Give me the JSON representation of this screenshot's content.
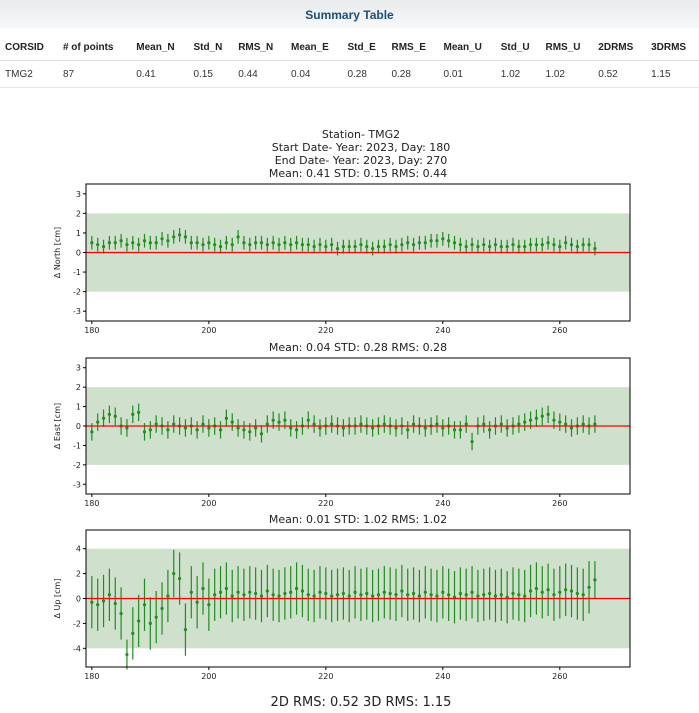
{
  "summary": {
    "title": "Summary Table",
    "columns": [
      "CORSID",
      "# of points",
      "Mean_N",
      "Std_N",
      "RMS_N",
      "Mean_E",
      "Std_E",
      "RMS_E",
      "Mean_U",
      "Std_U",
      "RMS_U",
      "2DRMS",
      "3DRMS"
    ],
    "rows": [
      [
        "TMG2",
        "87",
        "0.41",
        "0.15",
        "0.44",
        "0.04",
        "0.28",
        "0.28",
        "0.01",
        "1.02",
        "1.02",
        "0.52",
        "1.15"
      ]
    ]
  },
  "plot": {
    "title_lines": [
      "Station- TMG2",
      "Start Date- Year: 2023, Day: 180",
      "End Date- Year: 2023, Day: 270"
    ],
    "footer": "2D RMS: 0.52   3D RMS: 1.15",
    "colors": {
      "band": "#cfe0cc",
      "zero_line": "#ff0000",
      "marker": "#228b22"
    }
  },
  "chart_data": [
    {
      "type": "scatter",
      "stats_label": "Mean: 0.41   STD: 0.15   RMS: 0.44",
      "ylabel": "Δ North [cm]",
      "xlim": [
        179,
        272
      ],
      "ylim": [
        -3.5,
        3.5
      ],
      "xticks": [
        180,
        200,
        220,
        240,
        260
      ],
      "yticks": [
        -3,
        -2,
        -1,
        0,
        1,
        2,
        3
      ],
      "band": [
        -2,
        2
      ],
      "x": [
        180,
        181,
        182,
        183,
        184,
        185,
        186,
        187,
        188,
        189,
        190,
        191,
        192,
        193,
        194,
        195,
        196,
        197,
        198,
        199,
        200,
        201,
        202,
        203,
        204,
        205,
        206,
        207,
        208,
        209,
        210,
        211,
        212,
        213,
        214,
        215,
        216,
        217,
        218,
        219,
        220,
        221,
        222,
        223,
        224,
        225,
        226,
        227,
        228,
        229,
        230,
        231,
        232,
        233,
        234,
        235,
        236,
        237,
        238,
        239,
        240,
        241,
        242,
        243,
        244,
        245,
        246,
        247,
        248,
        249,
        250,
        251,
        252,
        253,
        254,
        255,
        256,
        257,
        258,
        259,
        260,
        261,
        262,
        263,
        264,
        265,
        266
      ],
      "y": [
        0.5,
        0.4,
        0.3,
        0.5,
        0.5,
        0.6,
        0.4,
        0.5,
        0.4,
        0.6,
        0.5,
        0.5,
        0.7,
        0.6,
        0.8,
        0.9,
        0.8,
        0.5,
        0.5,
        0.4,
        0.5,
        0.4,
        0.3,
        0.5,
        0.4,
        0.8,
        0.5,
        0.4,
        0.5,
        0.5,
        0.4,
        0.5,
        0.4,
        0.5,
        0.4,
        0.5,
        0.4,
        0.4,
        0.3,
        0.4,
        0.3,
        0.4,
        0.2,
        0.3,
        0.3,
        0.3,
        0.4,
        0.3,
        0.2,
        0.3,
        0.3,
        0.4,
        0.3,
        0.4,
        0.5,
        0.4,
        0.5,
        0.5,
        0.6,
        0.6,
        0.7,
        0.6,
        0.5,
        0.4,
        0.3,
        0.4,
        0.3,
        0.4,
        0.3,
        0.4,
        0.3,
        0.3,
        0.4,
        0.3,
        0.3,
        0.4,
        0.4,
        0.4,
        0.5,
        0.4,
        0.3,
        0.5,
        0.4,
        0.3,
        0.4,
        0.4,
        0.2
      ],
      "err": [
        0.35,
        0.35,
        0.35,
        0.35,
        0.35,
        0.35,
        0.35,
        0.35,
        0.35,
        0.35,
        0.35,
        0.35,
        0.35,
        0.35,
        0.35,
        0.35,
        0.35,
        0.35,
        0.35,
        0.35,
        0.35,
        0.35,
        0.35,
        0.35,
        0.35,
        0.35,
        0.35,
        0.35,
        0.35,
        0.35,
        0.35,
        0.35,
        0.35,
        0.35,
        0.35,
        0.35,
        0.35,
        0.35,
        0.35,
        0.35,
        0.35,
        0.35,
        0.35,
        0.35,
        0.35,
        0.35,
        0.35,
        0.35,
        0.35,
        0.35,
        0.35,
        0.35,
        0.35,
        0.35,
        0.35,
        0.35,
        0.35,
        0.35,
        0.35,
        0.35,
        0.35,
        0.35,
        0.35,
        0.35,
        0.35,
        0.35,
        0.35,
        0.35,
        0.35,
        0.35,
        0.35,
        0.35,
        0.35,
        0.35,
        0.35,
        0.35,
        0.35,
        0.35,
        0.35,
        0.35,
        0.35,
        0.35,
        0.35,
        0.35,
        0.35,
        0.35,
        0.35
      ]
    },
    {
      "type": "scatter",
      "stats_label": "Mean: 0.04   STD: 0.28   RMS: 0.28",
      "ylabel": "Δ East [cm]",
      "xlim": [
        179,
        272
      ],
      "ylim": [
        -3.5,
        3.5
      ],
      "xticks": [
        180,
        200,
        220,
        240,
        260
      ],
      "yticks": [
        -3,
        -2,
        -1,
        0,
        1,
        2,
        3
      ],
      "band": [
        -2,
        2
      ],
      "x": [
        180,
        181,
        182,
        183,
        184,
        185,
        186,
        187,
        188,
        189,
        190,
        191,
        192,
        193,
        194,
        195,
        196,
        197,
        198,
        199,
        200,
        201,
        202,
        203,
        204,
        205,
        206,
        207,
        208,
        209,
        210,
        211,
        212,
        213,
        214,
        215,
        216,
        217,
        218,
        219,
        220,
        221,
        222,
        223,
        224,
        225,
        226,
        227,
        228,
        229,
        230,
        231,
        232,
        233,
        234,
        235,
        236,
        237,
        238,
        239,
        240,
        241,
        242,
        243,
        244,
        245,
        246,
        247,
        248,
        249,
        250,
        251,
        252,
        253,
        254,
        255,
        256,
        257,
        258,
        259,
        260,
        261,
        262,
        263,
        264,
        265,
        266
      ],
      "y": [
        -0.3,
        0.2,
        0.4,
        0.6,
        0.5,
        0.0,
        -0.1,
        0.6,
        0.7,
        -0.3,
        -0.2,
        0.1,
        0.0,
        -0.2,
        0.1,
        0.0,
        -0.1,
        0.0,
        -0.2,
        0.1,
        -0.1,
        0.0,
        -0.2,
        0.4,
        0.2,
        -0.1,
        -0.2,
        -0.3,
        -0.1,
        -0.4,
        0.1,
        0.3,
        0.2,
        0.3,
        -0.1,
        -0.2,
        0.0,
        0.3,
        0.1,
        -0.1,
        0.0,
        0.1,
        0.0,
        -0.1,
        0.0,
        0.0,
        0.1,
        0.0,
        -0.1,
        0.0,
        0.1,
        0.0,
        -0.1,
        0.0,
        -0.2,
        0.1,
        0.0,
        -0.1,
        0.0,
        0.1,
        -0.1,
        0.0,
        -0.2,
        -0.2,
        0.1,
        -0.8,
        0.0,
        0.1,
        -0.2,
        0.0,
        0.1,
        -0.1,
        0.0,
        0.1,
        0.2,
        0.3,
        0.4,
        0.5,
        0.6,
        0.3,
        0.2,
        0.1,
        -0.1,
        0.0,
        0.1,
        0.0,
        0.1
      ],
      "err": [
        0.45,
        0.45,
        0.45,
        0.45,
        0.45,
        0.45,
        0.45,
        0.45,
        0.45,
        0.45,
        0.45,
        0.45,
        0.45,
        0.45,
        0.45,
        0.45,
        0.45,
        0.45,
        0.45,
        0.45,
        0.45,
        0.45,
        0.45,
        0.45,
        0.45,
        0.45,
        0.45,
        0.45,
        0.45,
        0.45,
        0.45,
        0.45,
        0.45,
        0.45,
        0.45,
        0.45,
        0.45,
        0.45,
        0.45,
        0.45,
        0.45,
        0.45,
        0.45,
        0.45,
        0.45,
        0.45,
        0.45,
        0.45,
        0.45,
        0.45,
        0.45,
        0.45,
        0.45,
        0.45,
        0.45,
        0.45,
        0.45,
        0.45,
        0.45,
        0.45,
        0.45,
        0.45,
        0.45,
        0.45,
        0.45,
        0.45,
        0.45,
        0.45,
        0.45,
        0.45,
        0.45,
        0.45,
        0.45,
        0.45,
        0.45,
        0.45,
        0.45,
        0.45,
        0.45,
        0.45,
        0.45,
        0.45,
        0.45,
        0.45,
        0.45,
        0.45,
        0.45
      ]
    },
    {
      "type": "scatter",
      "stats_label": "Mean: 0.01   STD: 1.02   RMS: 1.02",
      "ylabel": "Δ Up [cm]",
      "xlim": [
        179,
        272
      ],
      "ylim": [
        -5.5,
        5.5
      ],
      "xticks": [
        180,
        200,
        220,
        240,
        260
      ],
      "yticks": [
        -4,
        -2,
        0,
        2,
        4
      ],
      "band": [
        -4,
        4
      ],
      "x": [
        180,
        181,
        182,
        183,
        184,
        185,
        186,
        187,
        188,
        189,
        190,
        191,
        192,
        193,
        194,
        195,
        196,
        197,
        198,
        199,
        200,
        201,
        202,
        203,
        204,
        205,
        206,
        207,
        208,
        209,
        210,
        211,
        212,
        213,
        214,
        215,
        216,
        217,
        218,
        219,
        220,
        221,
        222,
        223,
        224,
        225,
        226,
        227,
        228,
        229,
        230,
        231,
        232,
        233,
        234,
        235,
        236,
        237,
        238,
        239,
        240,
        241,
        242,
        243,
        244,
        245,
        246,
        247,
        248,
        249,
        250,
        251,
        252,
        253,
        254,
        255,
        256,
        257,
        258,
        259,
        260,
        261,
        262,
        263,
        264,
        265,
        266
      ],
      "y": [
        -0.3,
        -0.5,
        -0.2,
        0.3,
        -0.4,
        -1.2,
        -4.5,
        -2.8,
        -1.8,
        -0.5,
        -2.0,
        -1.5,
        -0.8,
        0.2,
        2.0,
        1.6,
        -2.5,
        0.5,
        -0.3,
        0.8,
        -0.5,
        0.3,
        0.5,
        0.8,
        0.2,
        0.5,
        0.3,
        0.5,
        0.4,
        0.2,
        0.6,
        0.3,
        0.2,
        0.4,
        0.5,
        0.8,
        0.6,
        0.3,
        0.2,
        0.5,
        0.4,
        0.2,
        0.3,
        0.4,
        0.2,
        0.5,
        0.3,
        0.4,
        0.2,
        0.3,
        0.5,
        0.4,
        0.3,
        0.6,
        0.3,
        0.4,
        0.2,
        0.5,
        0.3,
        0.2,
        0.5,
        0.3,
        0.1,
        0.4,
        0.3,
        0.5,
        0.2,
        0.3,
        0.4,
        0.2,
        0.3,
        0.1,
        0.4,
        0.3,
        0.2,
        0.6,
        0.8,
        0.5,
        0.7,
        0.3,
        0.5,
        0.7,
        0.6,
        0.4,
        0.3,
        0.9,
        1.5
      ],
      "err": [
        2.1,
        2.1,
        2.1,
        2.1,
        2.1,
        2.1,
        1.2,
        2.1,
        2.1,
        2.1,
        2.1,
        2.1,
        2.1,
        2.1,
        1.9,
        2.1,
        2.1,
        2.1,
        2.1,
        2.1,
        2.1,
        2.1,
        2.1,
        2.1,
        2.1,
        2.1,
        2.1,
        2.1,
        2.1,
        2.1,
        2.1,
        2.1,
        2.1,
        2.1,
        2.1,
        2.1,
        2.1,
        2.1,
        2.1,
        2.1,
        2.1,
        2.1,
        2.1,
        2.1,
        2.1,
        2.1,
        2.1,
        2.1,
        2.1,
        2.1,
        2.1,
        2.1,
        2.1,
        2.1,
        2.1,
        2.1,
        2.1,
        2.1,
        2.1,
        2.1,
        2.1,
        2.1,
        2.1,
        2.1,
        2.1,
        2.1,
        2.1,
        2.1,
        2.1,
        2.1,
        2.1,
        2.1,
        2.1,
        2.1,
        2.1,
        2.1,
        2.1,
        2.1,
        2.1,
        2.1,
        2.1,
        2.1,
        2.1,
        2.1,
        2.1,
        2.1,
        1.5
      ]
    }
  ]
}
